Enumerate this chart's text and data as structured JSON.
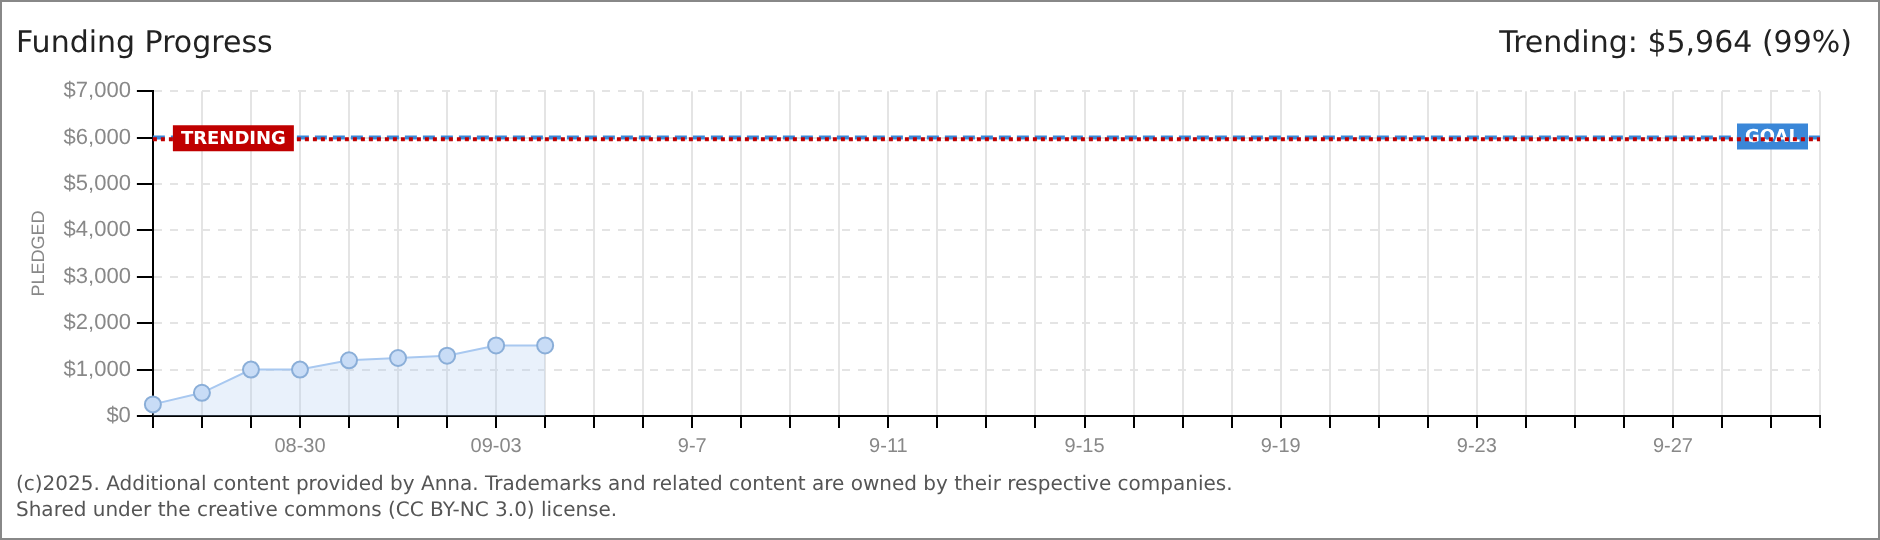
{
  "chart_data": {
    "type": "area",
    "title": "Funding Progress",
    "subtitle": "Trending: $5,964 (99%)",
    "ylabel": "PLEDGED",
    "categories": [
      null,
      null,
      null,
      "08-30",
      null,
      null,
      null,
      "09-03",
      null,
      null,
      null,
      "9-7",
      null,
      null,
      null,
      "9-11",
      null,
      null,
      null,
      "9-15",
      null,
      null,
      null,
      "9-19",
      null,
      null,
      null,
      "9-23",
      null,
      null,
      null,
      "9-27",
      null,
      null,
      null
    ],
    "series": [
      {
        "color": "#a8c8f0",
        "values": [
          250,
          500,
          1000,
          1000,
          1200,
          1250,
          1300,
          1520,
          1520,
          null,
          null,
          null,
          null,
          null,
          null,
          null,
          null,
          null,
          null,
          null,
          null,
          null,
          null,
          null,
          null,
          null,
          null,
          null,
          null,
          null,
          null,
          null,
          null,
          null,
          null
        ]
      }
    ],
    "ylim": [
      0,
      7000
    ],
    "yticks": [
      {
        "value": 0,
        "label": "$0"
      },
      {
        "value": 1000,
        "label": "$1,000"
      },
      {
        "value": 2000,
        "label": "$2,000"
      },
      {
        "value": 3000,
        "label": "$3,000"
      },
      {
        "value": 4000,
        "label": "$4,000"
      },
      {
        "value": 5000,
        "label": "$5,000"
      },
      {
        "value": 6000,
        "label": "$6,000"
      },
      {
        "value": 7000,
        "label": "$7,000"
      }
    ],
    "ref_lines": [
      {
        "axis": "y",
        "value": 6000,
        "label": "GOAL",
        "color": "#3a87d8",
        "line_style": "dashed"
      },
      {
        "axis": "y",
        "value": 5964,
        "label": "TRENDING",
        "color": "#c00000",
        "line_style": "dotted"
      }
    ],
    "grid": true,
    "marker": "circle",
    "legend": false,
    "annotations": [
      "(c)2025. Additional content provided by Anna. Trademarks and related content are owned by their respective companies.",
      "Shared under the creative commons (CC BY-NC 3.0) license."
    ]
  }
}
